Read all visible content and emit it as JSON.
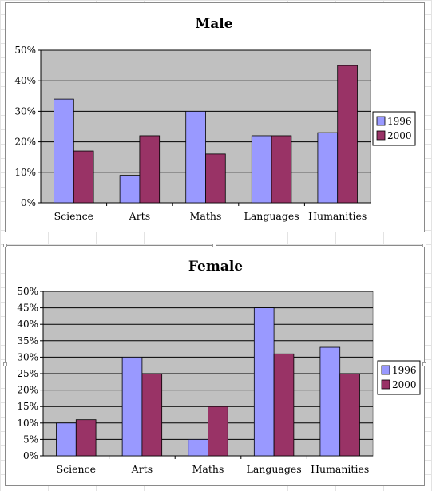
{
  "colors": {
    "series_1996": "#9999ff",
    "series_2000": "#993366",
    "plot_background": "#c0c0c0",
    "gridline": "#000000"
  },
  "chart_data": [
    {
      "type": "bar",
      "title": "Male",
      "categories": [
        "Science",
        "Arts",
        "Maths",
        "Languages",
        "Humanities"
      ],
      "series": [
        {
          "name": "1996",
          "values": [
            34,
            9,
            30,
            22,
            23
          ]
        },
        {
          "name": "2000",
          "values": [
            17,
            22,
            16,
            22,
            45
          ]
        }
      ],
      "yticks": [
        "0%",
        "10%",
        "20%",
        "30%",
        "40%",
        "50%"
      ],
      "ylim": [
        0,
        50
      ],
      "grid": true,
      "legend": "right"
    },
    {
      "type": "bar",
      "title": "Female",
      "categories": [
        "Science",
        "Arts",
        "Maths",
        "Languages",
        "Humanities"
      ],
      "series": [
        {
          "name": "1996",
          "values": [
            10,
            30,
            5,
            45,
            33
          ]
        },
        {
          "name": "2000",
          "values": [
            11,
            25,
            15,
            31,
            25
          ]
        }
      ],
      "yticks": [
        "0%",
        "5%",
        "10%",
        "15%",
        "20%",
        "25%",
        "30%",
        "35%",
        "40%",
        "45%",
        "50%"
      ],
      "ylim": [
        0,
        50
      ],
      "grid": true,
      "legend": "right"
    }
  ]
}
